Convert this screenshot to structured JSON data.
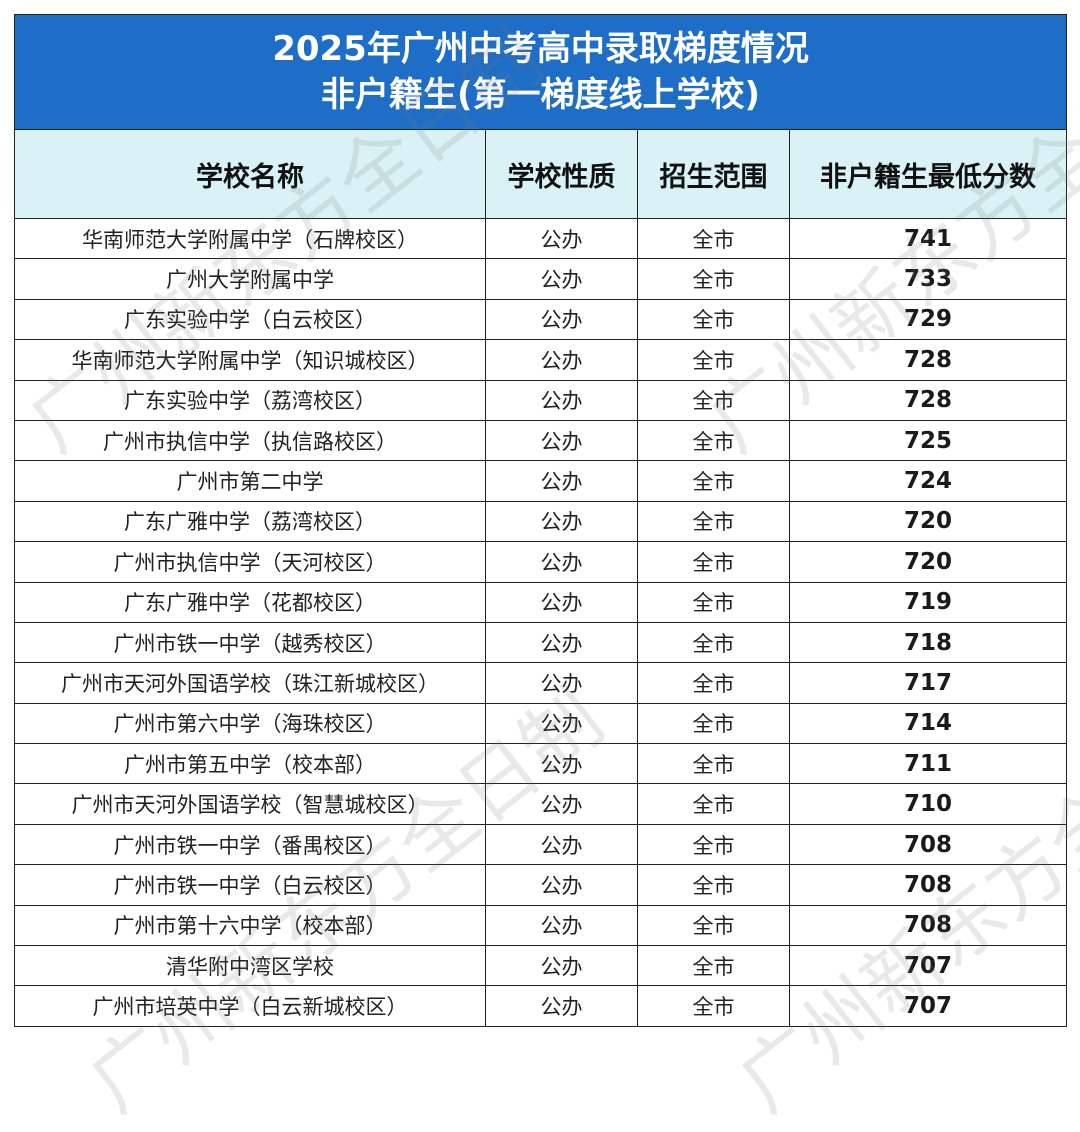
{
  "title": {
    "line1": "2025年广州中考高中录取梯度情况",
    "line2": "非户籍生(第一梯度线上学校)"
  },
  "headers": {
    "school": "学校名称",
    "nature": "学校性质",
    "range": "招生范围",
    "score": "非户籍生最低分数"
  },
  "rows": [
    {
      "school": "华南师范大学附属中学（石牌校区）",
      "nature": "公办",
      "range": "全市",
      "score": "741"
    },
    {
      "school": "广州大学附属中学",
      "nature": "公办",
      "range": "全市",
      "score": "733"
    },
    {
      "school": "广东实验中学（白云校区）",
      "nature": "公办",
      "range": "全市",
      "score": "729"
    },
    {
      "school": "华南师范大学附属中学（知识城校区）",
      "nature": "公办",
      "range": "全市",
      "score": "728"
    },
    {
      "school": "广东实验中学（荔湾校区）",
      "nature": "公办",
      "range": "全市",
      "score": "728"
    },
    {
      "school": "广州市执信中学（执信路校区）",
      "nature": "公办",
      "range": "全市",
      "score": "725"
    },
    {
      "school": "广州市第二中学",
      "nature": "公办",
      "range": "全市",
      "score": "724"
    },
    {
      "school": "广东广雅中学（荔湾校区）",
      "nature": "公办",
      "range": "全市",
      "score": "720"
    },
    {
      "school": "广州市执信中学（天河校区）",
      "nature": "公办",
      "range": "全市",
      "score": "720"
    },
    {
      "school": "广东广雅中学（花都校区）",
      "nature": "公办",
      "range": "全市",
      "score": "719"
    },
    {
      "school": "广州市铁一中学（越秀校区）",
      "nature": "公办",
      "range": "全市",
      "score": "718"
    },
    {
      "school": "广州市天河外国语学校（珠江新城校区）",
      "nature": "公办",
      "range": "全市",
      "score": "717"
    },
    {
      "school": "广州市第六中学（海珠校区）",
      "nature": "公办",
      "range": "全市",
      "score": "714"
    },
    {
      "school": "广州市第五中学（校本部）",
      "nature": "公办",
      "range": "全市",
      "score": "711"
    },
    {
      "school": "广州市天河外国语学校（智慧城校区）",
      "nature": "公办",
      "range": "全市",
      "score": "710"
    },
    {
      "school": "广州市铁一中学（番禺校区）",
      "nature": "公办",
      "range": "全市",
      "score": "708"
    },
    {
      "school": "广州市铁一中学（白云校区）",
      "nature": "公办",
      "range": "全市",
      "score": "708"
    },
    {
      "school": "广州市第十六中学（校本部）",
      "nature": "公办",
      "range": "全市",
      "score": "708"
    },
    {
      "school": "清华附中湾区学校",
      "nature": "公办",
      "range": "全市",
      "score": "707"
    },
    {
      "school": "广州市培英中学（白云新城校区）",
      "nature": "公办",
      "range": "全市",
      "score": "707"
    }
  ],
  "watermark": "广州新东方全日制",
  "colors": {
    "title_bg": "#1E6EC8",
    "header_bg": "#D9F2F5"
  }
}
